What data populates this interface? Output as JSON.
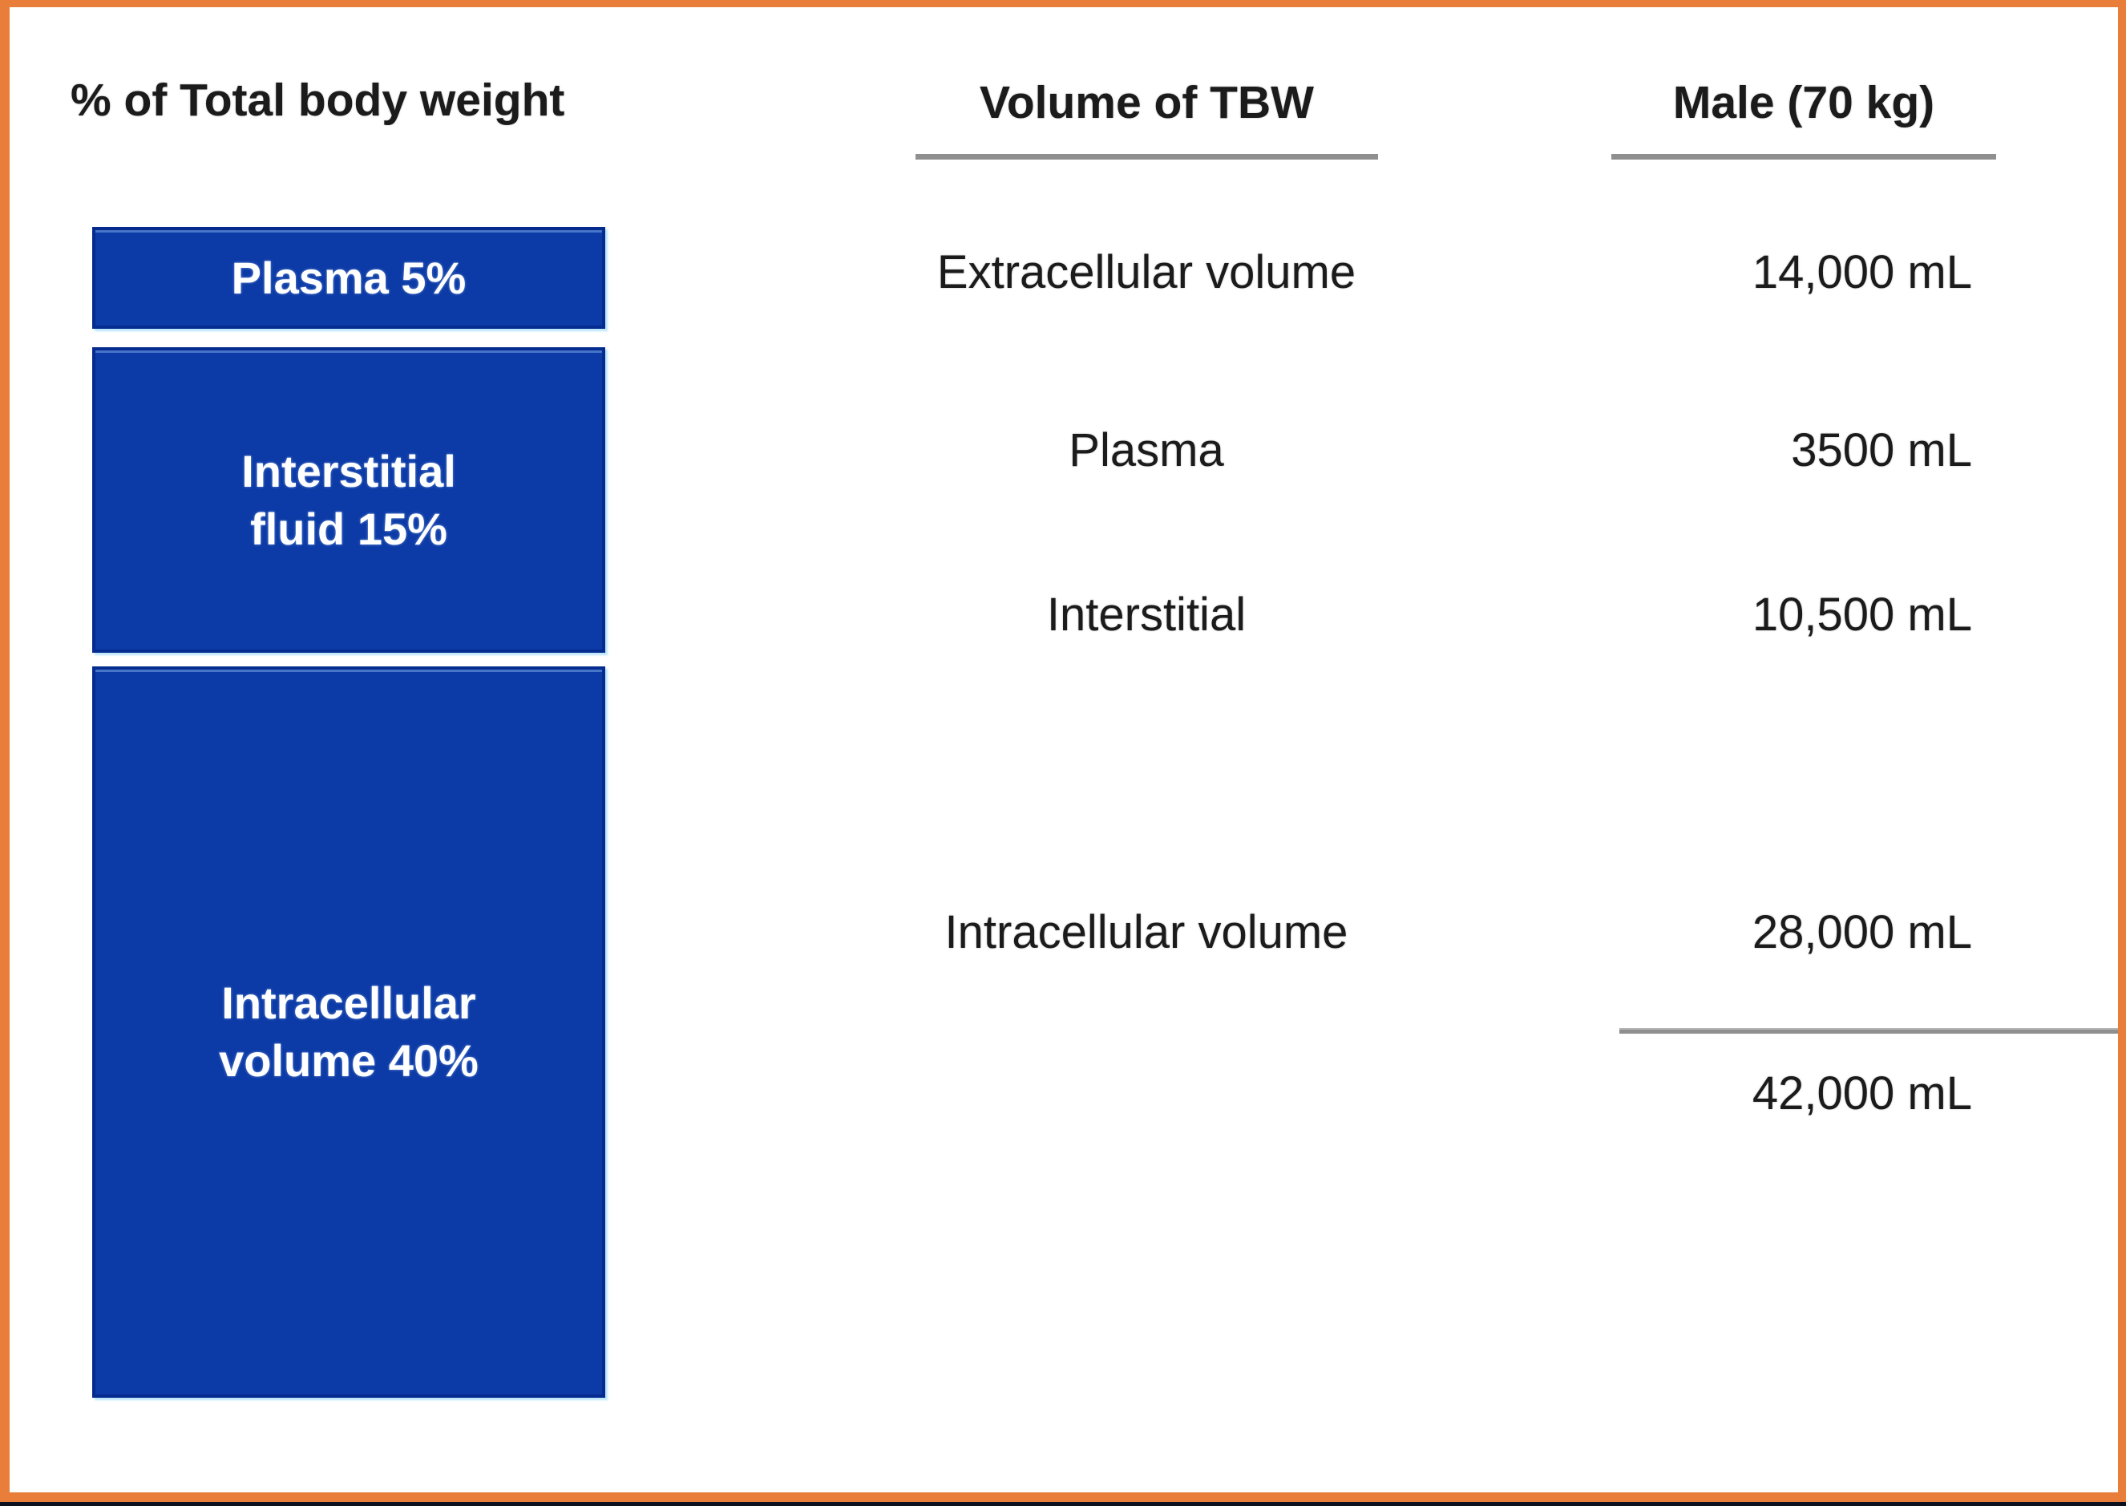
{
  "frame": {
    "border_color": "#E87E3A",
    "bottom_line_color": "#0C1120",
    "background": "#FFFFFF"
  },
  "bar_chart": {
    "title": "% of Total body weight",
    "bar_color": "#0C3AA6",
    "bar_border_color": "#052B8F",
    "label_color": "#FFFFFF",
    "segments": [
      {
        "name": "plasma",
        "percent": 5,
        "lines": [
          "Plasma 5%"
        ]
      },
      {
        "name": "interstitial-fluid",
        "percent": 15,
        "lines": [
          "Interstitial",
          "fluid 15%"
        ]
      },
      {
        "name": "intracellular-volume",
        "percent": 40,
        "lines": [
          "Intracellular",
          "volume 40%"
        ]
      }
    ]
  },
  "table": {
    "headers": {
      "volume": "Volume of TBW",
      "male": "Male (70 kg)"
    },
    "rows": [
      {
        "label": "Extracellular volume",
        "value": "14,000 mL"
      },
      {
        "label": "Plasma",
        "value": "3500 mL"
      },
      {
        "label": "Interstitial",
        "value": "10,500 mL"
      },
      {
        "label": "Intracellular volume",
        "value": "28,000 mL"
      }
    ],
    "total": {
      "value": "42,000 mL"
    },
    "rule_color": "#8F8F8F"
  },
  "chart_data": {
    "type": "bar",
    "subtype": "single-stacked-column",
    "title": "% of Total body weight",
    "categories": [
      "Plasma",
      "Interstitial fluid",
      "Intracellular volume"
    ],
    "values": [
      5,
      15,
      40
    ],
    "unit": "percent of total body weight",
    "ylim": [
      0,
      60
    ],
    "grid": false,
    "legend_position": "none",
    "companion_table": {
      "title": "Volume of TBW",
      "value_column": "Male (70 kg)",
      "rows": [
        [
          "Extracellular volume",
          "14,000 mL"
        ],
        [
          "Plasma",
          "3500 mL"
        ],
        [
          "Interstitial",
          "10,500 mL"
        ],
        [
          "Intracellular volume",
          "28,000 mL"
        ]
      ],
      "total": "42,000 mL"
    }
  }
}
